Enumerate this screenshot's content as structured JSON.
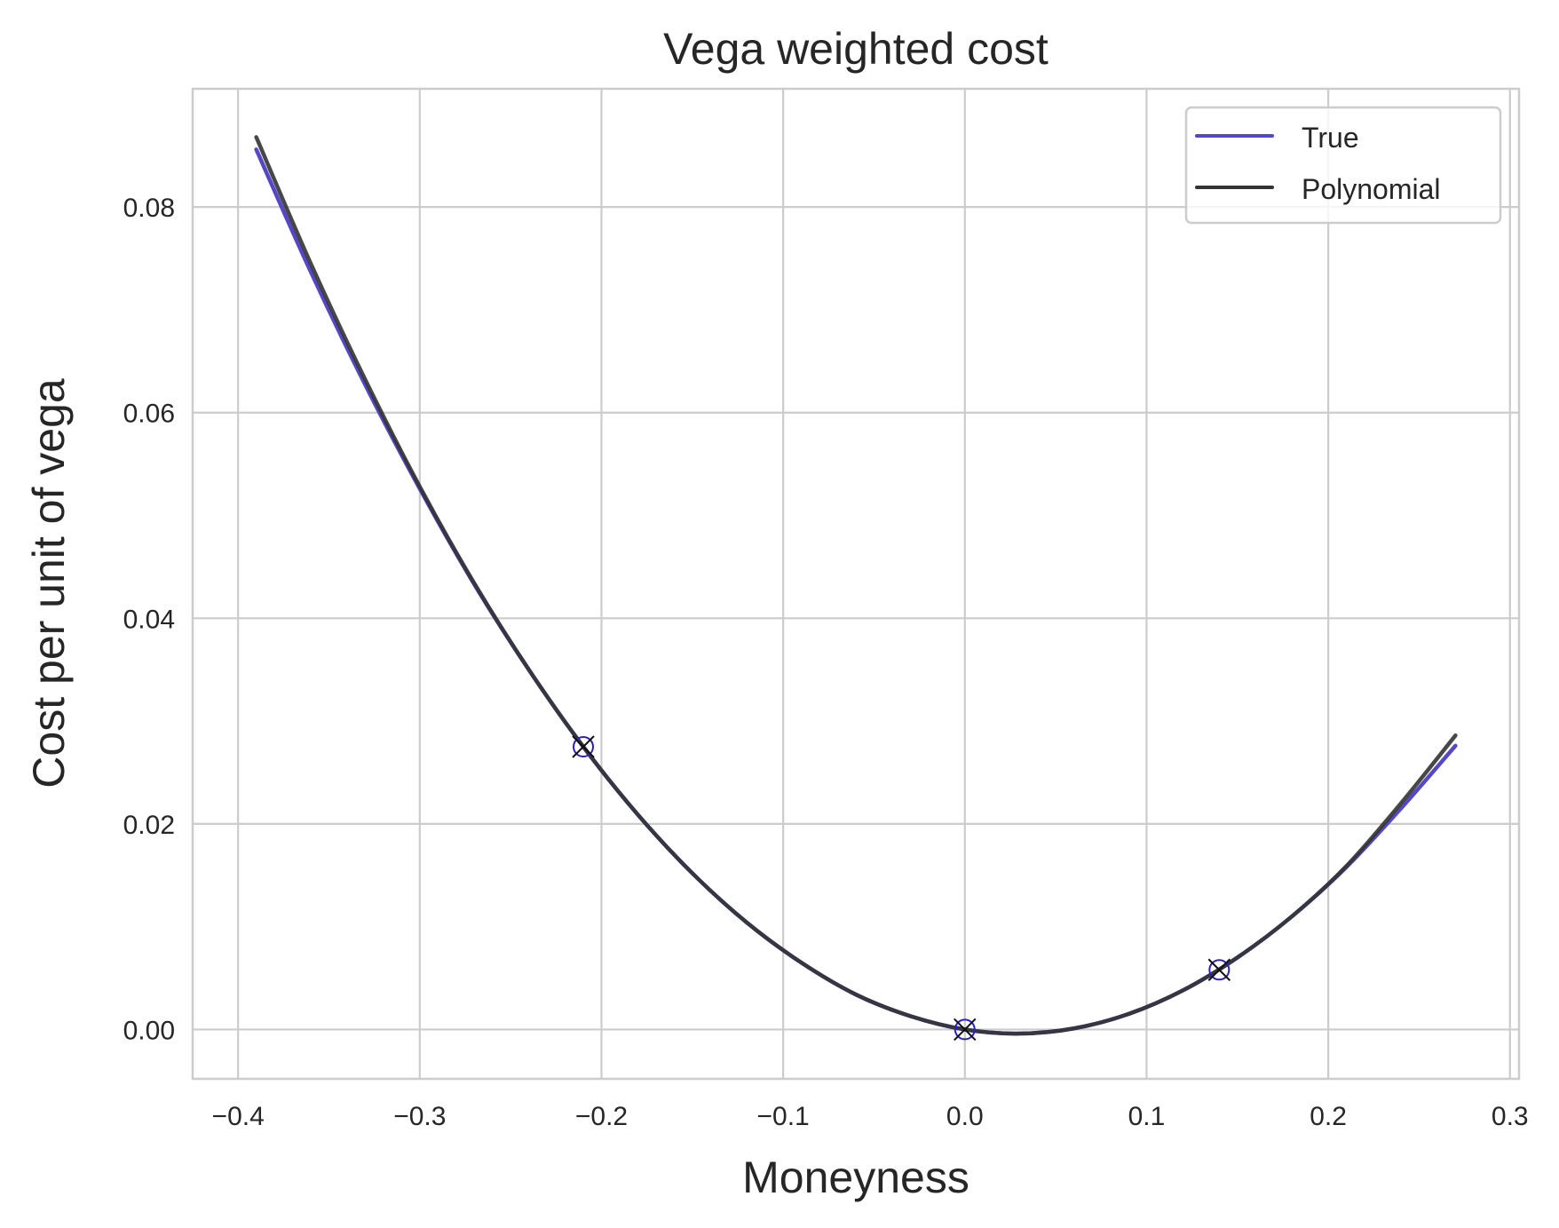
{
  "chart_data": {
    "type": "line",
    "title": "Vega weighted cost",
    "xlabel": "Moneyness",
    "ylabel": "Cost per unit of vega",
    "xlim": [
      -0.425,
      0.305
    ],
    "ylim": [
      -0.0048,
      0.0915
    ],
    "grid": true,
    "legend_placement": "top-right",
    "xticks": [
      -0.4,
      -0.3,
      -0.2,
      -0.1,
      0.0,
      0.1,
      0.2,
      0.3
    ],
    "xtick_labels": [
      "−0.4",
      "−0.3",
      "−0.2",
      "−0.1",
      "0.0",
      "0.1",
      "0.2",
      "0.3"
    ],
    "yticks": [
      0.0,
      0.02,
      0.04,
      0.06,
      0.08
    ],
    "ytick_labels": [
      "0.00",
      "0.02",
      "0.04",
      "0.06",
      "0.08"
    ],
    "x": [
      -0.39,
      -0.36,
      -0.33,
      -0.3,
      -0.27,
      -0.24,
      -0.21,
      -0.18,
      -0.15,
      -0.12,
      -0.09,
      -0.06,
      -0.03,
      0.0,
      0.03,
      0.06,
      0.09,
      0.12,
      0.15,
      0.18,
      0.21,
      0.24,
      0.27
    ],
    "series": [
      {
        "name": "True",
        "color": "#5548c6",
        "values": [
          0.0856,
          0.0737,
          0.0627,
          0.0526,
          0.0433,
          0.035,
          0.0275,
          0.0209,
          0.0152,
          0.0104,
          0.0065,
          0.0034,
          0.0013,
          0.0,
          -0.0004,
          0.0001,
          0.0015,
          0.0038,
          0.007,
          0.011,
          0.0158,
          0.0215,
          0.0276
        ]
      },
      {
        "name": "Polynomial",
        "color": "#333333",
        "values": [
          0.0868,
          0.0745,
          0.0632,
          0.0528,
          0.0434,
          0.035,
          0.0275,
          0.0209,
          0.0152,
          0.0104,
          0.0065,
          0.0034,
          0.0013,
          0.0,
          -0.0004,
          0.0001,
          0.0015,
          0.0038,
          0.007,
          0.011,
          0.0159,
          0.022,
          0.0286
        ]
      }
    ],
    "markers": {
      "x": [
        -0.21,
        0.0,
        0.14
      ],
      "y": [
        0.0275,
        0.0,
        0.0058
      ],
      "circle_color": "#2a1fd0",
      "cross_color": "#111111"
    }
  }
}
